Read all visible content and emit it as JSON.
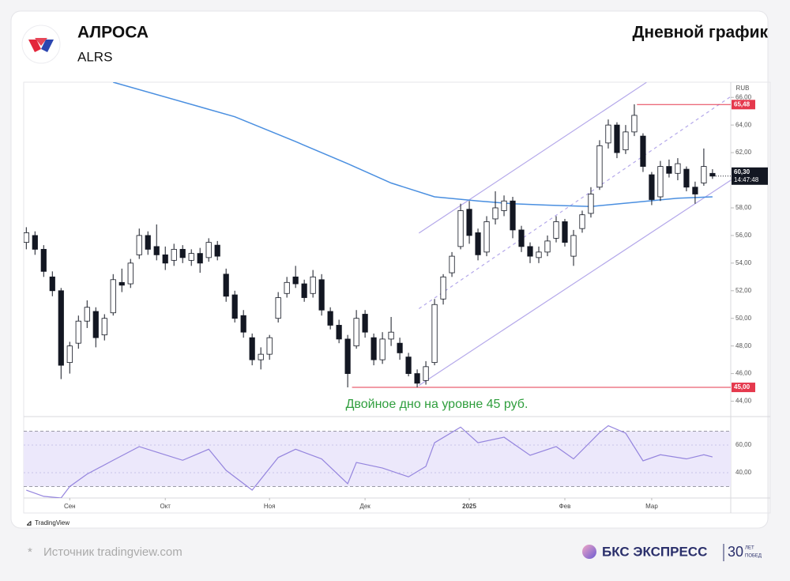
{
  "page": {
    "source": "Источник tradingview.com",
    "source_mark": "*",
    "brand": "БКС ЭКСПРЕСС",
    "brand_years": "30",
    "brand_top": "ЛЕТ",
    "brand_bottom": "ПОБЕД"
  },
  "chart_data": {
    "type": "candlestick",
    "title": "АЛРОСА",
    "subtitle": "ALRS",
    "label": "Дневной график",
    "currency": "RUB",
    "annotation": "Двойное дно на уровне 45 руб.",
    "watermark": "TradingView",
    "xlim": [
      -0.3,
      81.1
    ],
    "xticks": [
      {
        "value": 5,
        "label": "Сен"
      },
      {
        "value": 16,
        "label": "Окт"
      },
      {
        "value": 28,
        "label": "Ноя"
      },
      {
        "value": 39,
        "label": "Дек"
      },
      {
        "value": 51,
        "label": "2025"
      },
      {
        "value": 62,
        "label": "Фев"
      },
      {
        "value": 72,
        "label": "Мар"
      }
    ],
    "ylim": [
      43,
      67.1
    ],
    "yticks": [
      {
        "value": 44,
        "label": "44,00"
      },
      {
        "value": 46,
        "label": "46,00"
      },
      {
        "value": 48,
        "label": "48,00"
      },
      {
        "value": 50,
        "label": "50,00"
      },
      {
        "value": 52,
        "label": "52,00"
      },
      {
        "value": 54,
        "label": "54,00"
      },
      {
        "value": 56,
        "label": "56,00"
      },
      {
        "value": 58,
        "label": "58,00"
      },
      {
        "value": 60,
        "label": "60,00"
      },
      {
        "value": 62,
        "label": "62,00"
      },
      {
        "value": 64,
        "label": "64,00"
      },
      {
        "value": 66,
        "label": "66,00"
      }
    ],
    "up_color": "#ffffff",
    "down_color": "#131722",
    "open": [
      55.5,
      56.0,
      55.0,
      53.0,
      52.0,
      46.8,
      48.2,
      49.8,
      50.5,
      48.8,
      50.4,
      52.6,
      52.5,
      54.6,
      56.0,
      55.2,
      54.6,
      54.2,
      55.0,
      54.2,
      54.7,
      54.4,
      55.3,
      53.2,
      51.7,
      50.2,
      48.6,
      47.0,
      47.4,
      50.0,
      51.8,
      53.0,
      52.5,
      51.8,
      52.8,
      50.5,
      49.5,
      48.5,
      48.0,
      50.3,
      48.6,
      47.0,
      48.5,
      48.2,
      47.2,
      46.0,
      45.5,
      46.8,
      51.4,
      53.3,
      55.2,
      57.9,
      56.2,
      54.8,
      57.2,
      57.8,
      58.5,
      56.4,
      55.2,
      54.4,
      54.8,
      55.8,
      57.0,
      54.5,
      56.5,
      57.6,
      59.5,
      62.7,
      64.0,
      62.2,
      63.5,
      63.2,
      60.4,
      58.8,
      61.0,
      60.5,
      60.8,
      59.5,
      59.8,
      60.5
    ],
    "high": [
      56.6,
      56.3,
      55.3,
      53.4,
      52.2,
      48.3,
      50.2,
      51.3,
      50.8,
      50.3,
      53.2,
      53.6,
      54.3,
      56.5,
      56.3,
      56.8,
      55.2,
      55.4,
      55.3,
      55.0,
      55.1,
      55.8,
      55.6,
      53.6,
      52.0,
      50.6,
      48.9,
      47.9,
      48.8,
      51.9,
      53.0,
      53.8,
      52.8,
      53.5,
      53.2,
      50.8,
      49.9,
      48.8,
      50.6,
      50.6,
      48.9,
      49.0,
      50.1,
      48.6,
      47.5,
      46.3,
      46.9,
      51.4,
      53.2,
      54.8,
      58.3,
      58.5,
      56.5,
      57.4,
      59.2,
      58.9,
      58.8,
      56.7,
      55.5,
      55.2,
      56.0,
      57.4,
      57.2,
      56.4,
      57.8,
      59.5,
      62.9,
      64.4,
      64.2,
      64.0,
      65.5,
      63.4,
      60.6,
      61.4,
      61.5,
      61.6,
      61.0,
      59.9,
      62.3,
      60.8
    ],
    "low": [
      55.0,
      54.6,
      53.0,
      51.6,
      45.6,
      46.0,
      47.8,
      49.3,
      47.9,
      48.4,
      50.2,
      51.9,
      52.2,
      54.3,
      54.6,
      54.2,
      53.5,
      53.8,
      54.0,
      53.8,
      53.3,
      54.1,
      54.2,
      51.2,
      49.7,
      48.6,
      46.6,
      46.3,
      47.0,
      49.7,
      51.5,
      52.2,
      51.2,
      51.5,
      50.2,
      49.2,
      48.2,
      45.0,
      47.8,
      48.6,
      46.6,
      46.7,
      48.0,
      47.0,
      45.8,
      45.0,
      45.2,
      46.6,
      51.0,
      53.0,
      55.0,
      55.4,
      54.2,
      54.5,
      56.8,
      57.4,
      55.8,
      54.8,
      54.0,
      54.0,
      54.5,
      55.5,
      55.2,
      53.8,
      56.2,
      57.3,
      59.3,
      62.3,
      61.6,
      61.9,
      63.2,
      60.6,
      58.2,
      58.5,
      60.2,
      60.0,
      59.2,
      58.3,
      59.6,
      60.1
    ],
    "close": [
      56.2,
      55.0,
      53.4,
      52.0,
      46.6,
      48.0,
      49.8,
      50.8,
      48.6,
      50.0,
      52.8,
      52.4,
      54.0,
      56.0,
      55.0,
      54.6,
      54.0,
      55.0,
      54.4,
      54.7,
      54.0,
      55.5,
      54.5,
      51.6,
      50.0,
      49.0,
      47.0,
      47.4,
      48.6,
      51.5,
      52.6,
      52.5,
      51.5,
      53.0,
      50.6,
      49.5,
      48.5,
      46.0,
      50.0,
      49.0,
      47.0,
      48.5,
      49.0,
      47.5,
      46.0,
      45.3,
      46.5,
      51.0,
      53.0,
      54.5,
      57.8,
      56.0,
      54.6,
      57.0,
      58.0,
      58.5,
      56.4,
      55.2,
      54.5,
      54.8,
      55.6,
      57.0,
      55.5,
      56.0,
      57.5,
      59.0,
      62.5,
      64.0,
      62.0,
      63.5,
      64.7,
      61.0,
      58.6,
      61.0,
      60.5,
      61.2,
      59.5,
      59.0,
      61.0,
      60.3
    ],
    "ma": {
      "color": "#4a8fe0",
      "x": [
        10,
        24,
        31,
        37,
        42,
        47,
        52,
        56,
        60,
        65,
        70,
        75,
        79
      ],
      "values": [
        67.1,
        64.6,
        62.8,
        61.2,
        59.8,
        58.8,
        58.5,
        58.3,
        58.2,
        58.1,
        58.4,
        58.7,
        58.8
      ]
    },
    "channel": {
      "color": "#b4a8ea",
      "upper": {
        "x": [
          45.2,
          71.4
        ],
        "values": [
          56.17,
          67.09
        ]
      },
      "lower": {
        "x": [
          45.2,
          81.1
        ],
        "values": [
          45.14,
          60
        ]
      },
      "middle": {
        "x": [
          45.2,
          81.1
        ],
        "values": [
          50.7,
          66.06
        ]
      }
    },
    "levels": [
      {
        "value": 65.48,
        "label": "65,48",
        "from": 70.3
      },
      {
        "value": 45,
        "label": "45,00",
        "from": 37.5
      }
    ],
    "level_color": "#e5394d",
    "last_price": {
      "value": 60.3,
      "label": "60,30",
      "time": "14:47:48"
    },
    "rsi": {
      "color": "#9585de",
      "ylim": [
        21.7,
        78.9
      ],
      "bands": [
        30,
        70
      ],
      "yticks": [
        {
          "value": 40,
          "label": "40,00"
        },
        {
          "value": 60,
          "label": "60,00"
        }
      ],
      "x": [
        0,
        2,
        4,
        5,
        7,
        10,
        13,
        15,
        18,
        21,
        23,
        26,
        29,
        31,
        34,
        37,
        38,
        41,
        44,
        46,
        47,
        50,
        52,
        55,
        58,
        61,
        63,
        66,
        67,
        69,
        71,
        73,
        76,
        78,
        79
      ],
      "values": [
        27.4,
        22.9,
        21.7,
        30,
        39,
        49,
        58.9,
        54.9,
        49,
        57,
        41.7,
        27.4,
        51,
        57,
        50,
        32,
        47.4,
        43.4,
        37,
        44.6,
        61.7,
        73,
        61.7,
        65.7,
        52.6,
        58.9,
        50,
        69,
        74,
        68.6,
        48.6,
        53,
        50,
        53,
        51.4
      ]
    }
  }
}
